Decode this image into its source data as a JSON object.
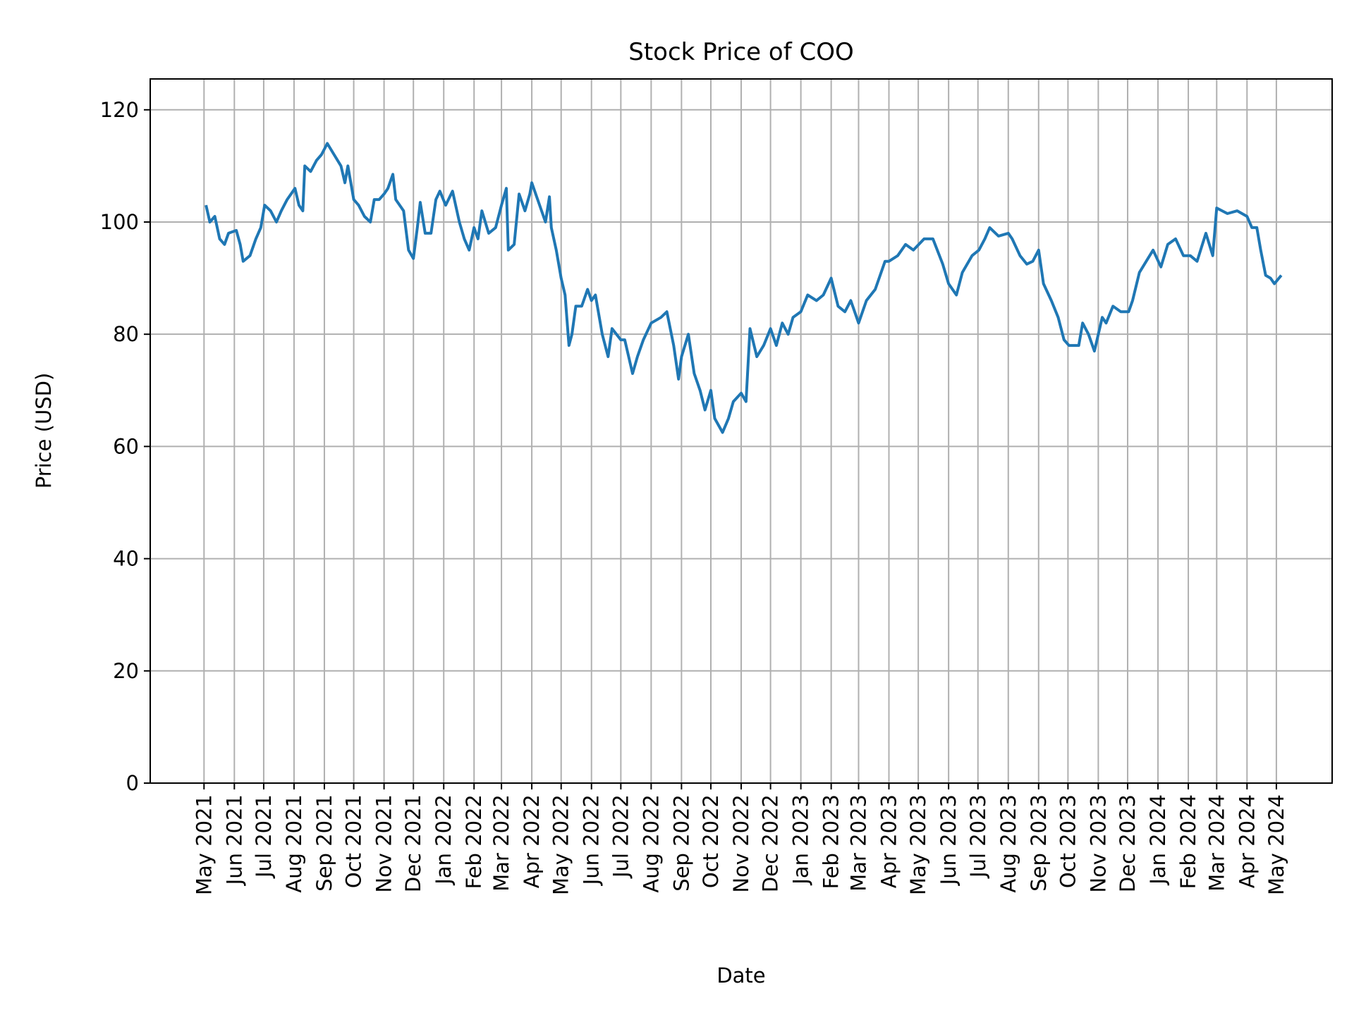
{
  "chart_data": {
    "type": "line",
    "title": "Stock Price of COO",
    "xlabel": "Date",
    "ylabel": "Price (USD)",
    "ylim": [
      0,
      125.5
    ],
    "xlim": [
      "2021-03-07",
      "2024-06-27"
    ],
    "grid": true,
    "line_color": "#1f77b4",
    "yticks": [
      0,
      20,
      40,
      60,
      80,
      100,
      120
    ],
    "xticks": [
      {
        "date": "2021-05-01",
        "label": "May 2021"
      },
      {
        "date": "2021-06-01",
        "label": "Jun 2021"
      },
      {
        "date": "2021-07-01",
        "label": "Jul 2021"
      },
      {
        "date": "2021-08-01",
        "label": "Aug 2021"
      },
      {
        "date": "2021-09-01",
        "label": "Sep 2021"
      },
      {
        "date": "2021-10-01",
        "label": "Oct 2021"
      },
      {
        "date": "2021-11-01",
        "label": "Nov 2021"
      },
      {
        "date": "2021-12-01",
        "label": "Dec 2021"
      },
      {
        "date": "2022-01-01",
        "label": "Jan 2022"
      },
      {
        "date": "2022-02-01",
        "label": "Feb 2022"
      },
      {
        "date": "2022-03-01",
        "label": "Mar 2022"
      },
      {
        "date": "2022-04-01",
        "label": "Apr 2022"
      },
      {
        "date": "2022-05-01",
        "label": "May 2022"
      },
      {
        "date": "2022-06-01",
        "label": "Jun 2022"
      },
      {
        "date": "2022-07-01",
        "label": "Jul 2022"
      },
      {
        "date": "2022-08-01",
        "label": "Aug 2022"
      },
      {
        "date": "2022-09-01",
        "label": "Sep 2022"
      },
      {
        "date": "2022-10-01",
        "label": "Oct 2022"
      },
      {
        "date": "2022-11-01",
        "label": "Nov 2022"
      },
      {
        "date": "2022-12-01",
        "label": "Dec 2022"
      },
      {
        "date": "2023-01-01",
        "label": "Jan 2023"
      },
      {
        "date": "2023-02-01",
        "label": "Feb 2023"
      },
      {
        "date": "2023-03-01",
        "label": "Mar 2023"
      },
      {
        "date": "2023-04-01",
        "label": "Apr 2023"
      },
      {
        "date": "2023-05-01",
        "label": "May 2023"
      },
      {
        "date": "2023-06-01",
        "label": "Jun 2023"
      },
      {
        "date": "2023-07-01",
        "label": "Jul 2023"
      },
      {
        "date": "2023-08-01",
        "label": "Aug 2023"
      },
      {
        "date": "2023-09-01",
        "label": "Sep 2023"
      },
      {
        "date": "2023-10-01",
        "label": "Oct 2023"
      },
      {
        "date": "2023-11-01",
        "label": "Nov 2023"
      },
      {
        "date": "2023-12-01",
        "label": "Dec 2023"
      },
      {
        "date": "2024-01-01",
        "label": "Jan 2024"
      },
      {
        "date": "2024-02-01",
        "label": "Feb 2024"
      },
      {
        "date": "2024-03-01",
        "label": "Mar 2024"
      },
      {
        "date": "2024-04-01",
        "label": "Apr 2024"
      },
      {
        "date": "2024-05-01",
        "label": "May 2024"
      }
    ],
    "series": [
      {
        "x": [
          "2021-05-03",
          "2021-05-07",
          "2021-05-12",
          "2021-05-17",
          "2021-05-22",
          "2021-05-26",
          "2021-06-03",
          "2021-06-07",
          "2021-06-10",
          "2021-06-17",
          "2021-06-23",
          "2021-06-28",
          "2021-07-02",
          "2021-07-08",
          "2021-07-14",
          "2021-07-19",
          "2021-07-25",
          "2021-08-02",
          "2021-08-06",
          "2021-08-10",
          "2021-08-12",
          "2021-08-18",
          "2021-08-24",
          "2021-08-29",
          "2021-09-01",
          "2021-09-04",
          "2021-09-11",
          "2021-09-18",
          "2021-09-22",
          "2021-09-25",
          "2021-10-01",
          "2021-10-06",
          "2021-10-12",
          "2021-10-18",
          "2021-10-22",
          "2021-10-27",
          "2021-11-01",
          "2021-11-05",
          "2021-11-10",
          "2021-11-13",
          "2021-11-21",
          "2021-11-26",
          "2021-12-01",
          "2021-12-05",
          "2021-12-08",
          "2021-12-13",
          "2021-12-19",
          "2021-12-24",
          "2021-12-28",
          "2022-01-03",
          "2022-01-10",
          "2022-01-17",
          "2022-01-22",
          "2022-01-27",
          "2022-02-01",
          "2022-02-05",
          "2022-02-09",
          "2022-02-16",
          "2022-02-23",
          "2022-03-01",
          "2022-03-06",
          "2022-03-08",
          "2022-03-14",
          "2022-03-19",
          "2022-03-25",
          "2022-03-30",
          "2022-04-01",
          "2022-04-07",
          "2022-04-15",
          "2022-04-19",
          "2022-04-21",
          "2022-04-26",
          "2022-05-01",
          "2022-05-05",
          "2022-05-09",
          "2022-05-12",
          "2022-05-16",
          "2022-05-22",
          "2022-05-28",
          "2022-06-01",
          "2022-06-05",
          "2022-06-12",
          "2022-06-18",
          "2022-06-22",
          "2022-07-01",
          "2022-07-05",
          "2022-07-13",
          "2022-07-18",
          "2022-07-24",
          "2022-08-01",
          "2022-08-06",
          "2022-08-11",
          "2022-08-17",
          "2022-08-24",
          "2022-08-29",
          "2022-09-01",
          "2022-09-08",
          "2022-09-14",
          "2022-09-20",
          "2022-09-25",
          "2022-10-01",
          "2022-10-05",
          "2022-10-13",
          "2022-10-19",
          "2022-10-24",
          "2022-11-01",
          "2022-11-06",
          "2022-11-10",
          "2022-11-17",
          "2022-11-24",
          "2022-12-01",
          "2022-12-07",
          "2022-12-13",
          "2022-12-19",
          "2022-12-24",
          "2023-01-01",
          "2023-01-08",
          "2023-01-17",
          "2023-01-24",
          "2023-02-01",
          "2023-02-08",
          "2023-02-15",
          "2023-02-21",
          "2023-03-01",
          "2023-03-09",
          "2023-03-18",
          "2023-03-28",
          "2023-04-01",
          "2023-04-10",
          "2023-04-18",
          "2023-04-26",
          "2023-05-07",
          "2023-05-16",
          "2023-05-26",
          "2023-06-01",
          "2023-06-09",
          "2023-06-15",
          "2023-06-25",
          "2023-07-02",
          "2023-07-08",
          "2023-07-13",
          "2023-07-22",
          "2023-08-01",
          "2023-08-05",
          "2023-08-13",
          "2023-08-20",
          "2023-08-26",
          "2023-09-01",
          "2023-09-06",
          "2023-09-14",
          "2023-09-21",
          "2023-09-27",
          "2023-10-02",
          "2023-10-12",
          "2023-10-16",
          "2023-10-22",
          "2023-10-28",
          "2023-11-05",
          "2023-11-09",
          "2023-11-16",
          "2023-11-24",
          "2023-12-02",
          "2023-12-06",
          "2023-12-13",
          "2023-12-20",
          "2023-12-27",
          "2024-01-04",
          "2024-01-11",
          "2024-01-19",
          "2024-01-27",
          "2024-02-03",
          "2024-02-10",
          "2024-02-19",
          "2024-02-26",
          "2024-03-01",
          "2024-03-12",
          "2024-03-22",
          "2024-04-01",
          "2024-04-06",
          "2024-04-11",
          "2024-04-15",
          "2024-04-20",
          "2024-04-25",
          "2024-04-29",
          "2024-05-06"
        ],
        "y": [
          103,
          100,
          101,
          97,
          96,
          98,
          98.5,
          96,
          93,
          94,
          97,
          99,
          103,
          102,
          100,
          102,
          104,
          106,
          103,
          102,
          110,
          109,
          111,
          112,
          113,
          114,
          112,
          110,
          107,
          110,
          104,
          103,
          101,
          100,
          104,
          104,
          105,
          106,
          108.5,
          104,
          102,
          95,
          93.5,
          99,
          103.5,
          98,
          98,
          104,
          105.5,
          103,
          105.5,
          100,
          97,
          95,
          99,
          97,
          102,
          98,
          99,
          103,
          106,
          95,
          96,
          105,
          102,
          105,
          107,
          104,
          100,
          104.5,
          99,
          95,
          90,
          87,
          78,
          80,
          85,
          85,
          88,
          86,
          87,
          80,
          76,
          81,
          79,
          79,
          73,
          76,
          79,
          82,
          82.5,
          83,
          84,
          78,
          72,
          76,
          80,
          73,
          70,
          66.5,
          70,
          65,
          62.5,
          65,
          68,
          69.5,
          68,
          81,
          76,
          78,
          81,
          78,
          82,
          80,
          83,
          84,
          87,
          86,
          87,
          90,
          85,
          84,
          86,
          82,
          86,
          88,
          93,
          93,
          94,
          96,
          95,
          97,
          97,
          92.5,
          89,
          87,
          91,
          94,
          95,
          97,
          99,
          97.5,
          98,
          97,
          94,
          92.5,
          93,
          95,
          89,
          86,
          83,
          79,
          78,
          78,
          82,
          80,
          77,
          83,
          82,
          85,
          84,
          84,
          86,
          91,
          93,
          95,
          92,
          96,
          97,
          94,
          94,
          93,
          98,
          94,
          102.5,
          101.5,
          102,
          101,
          99,
          99,
          95,
          90.5,
          90,
          89,
          90.5
        ]
      }
    ]
  }
}
